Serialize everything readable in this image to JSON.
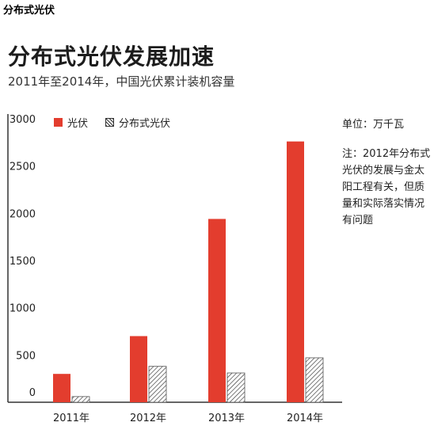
{
  "page_label": "分布式光伏",
  "title": "分布式光伏发展加速",
  "subtitle": "2011年至2014年，中国光伏累计装机容量",
  "unit": "单位：万千瓦",
  "note": "注：2012年分布式光伏的发展与金太阳工程有关，但质量和实际落实情况有问题",
  "colors": {
    "solar": "#e33d2e",
    "distributed_pattern": "#333333",
    "axis": "#333333"
  },
  "chart_data": {
    "type": "bar",
    "categories": [
      "2011年",
      "2012年",
      "2013年",
      "2014年"
    ],
    "series": [
      {
        "name": "光伏",
        "values": [
          300,
          700,
          1940,
          2760
        ]
      },
      {
        "name": "分布式光伏",
        "values": [
          60,
          380,
          310,
          470
        ]
      }
    ],
    "yticks": [
      0,
      500,
      1000,
      1500,
      2000,
      2500,
      3000
    ],
    "ylim": [
      0,
      3000
    ],
    "legend": "top-left",
    "grid": false
  }
}
